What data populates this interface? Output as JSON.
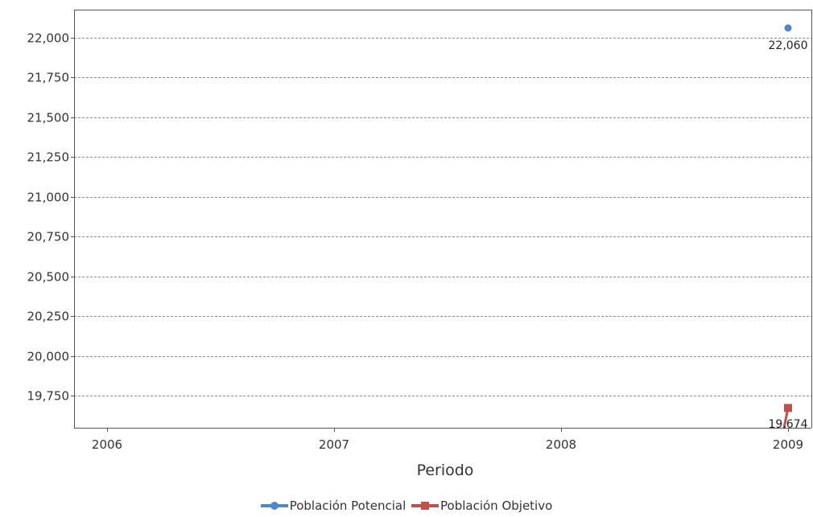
{
  "chart_data": {
    "type": "line",
    "title": "",
    "xlabel": "Periodo",
    "ylabel": "",
    "categories": [
      "2006",
      "2007",
      "2008",
      "2009"
    ],
    "ylim": [
      19550,
      22175
    ],
    "y_ticks": [
      19750,
      20000,
      20250,
      20500,
      20750,
      21000,
      21250,
      21500,
      21750,
      22000
    ],
    "y_tick_labels": [
      "19,750",
      "20,000",
      "20,250",
      "20,500",
      "20,750",
      "21,000",
      "21,250",
      "21,500",
      "21,750",
      "22,000"
    ],
    "grid": true,
    "legend_position": "bottom-center",
    "series": [
      {
        "name": "Población Potencial",
        "color": "#4f87c9",
        "marker": "circle",
        "values": [
          null,
          null,
          null,
          22060
        ],
        "data_labels": [
          null,
          null,
          null,
          "22,060"
        ]
      },
      {
        "name": "Población Objetivo",
        "color": "#c0504d",
        "marker": "square",
        "values": [
          null,
          null,
          null,
          19674
        ],
        "data_labels": [
          null,
          null,
          null,
          "19,674"
        ]
      }
    ]
  }
}
